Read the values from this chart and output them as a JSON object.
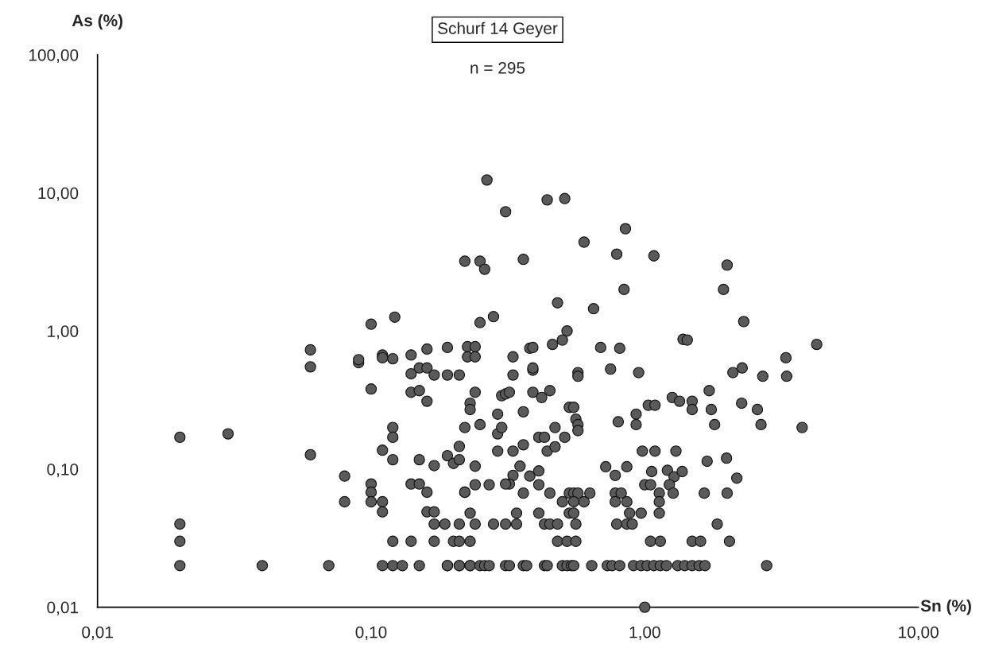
{
  "chart_data": {
    "type": "scatter",
    "title": "Schurf 14 Geyer",
    "subtitle": "n = 295",
    "xlabel": "Sn (%)",
    "ylabel": "As (%)",
    "log": "xy",
    "grid": false,
    "marker": "circle",
    "xlim": [
      0.01,
      10
    ],
    "ylim": [
      0.01,
      100
    ],
    "xticks": [
      {
        "value": 0.01,
        "label": "0,01"
      },
      {
        "value": 0.1,
        "label": "0,10"
      },
      {
        "value": 1,
        "label": "1,00"
      },
      {
        "value": 10,
        "label": "10,00"
      }
    ],
    "yticks": [
      {
        "value": 0.01,
        "label": "0,01"
      },
      {
        "value": 0.1,
        "label": "0,10"
      },
      {
        "value": 1,
        "label": "1,00"
      },
      {
        "value": 10,
        "label": "10,00"
      },
      {
        "value": 100,
        "label": "100,00"
      }
    ],
    "series": [
      {
        "color": "#5a5a5a",
        "x": [
          0.02,
          0.03,
          0.02,
          0.02,
          0.02,
          0.04,
          0.07,
          0.06,
          0.06,
          0.06,
          0.09,
          0.09,
          0.08,
          0.08,
          0.1,
          0.122,
          0.1,
          0.1,
          0.1,
          0.1,
          0.11,
          0.11,
          0.11,
          0.12,
          0.12,
          0.12,
          0.11,
          0.11,
          0.12,
          0.14,
          0.16,
          0.19,
          0.14,
          0.15,
          0.16,
          0.17,
          0.19,
          0.21,
          0.14,
          0.15,
          0.16,
          0.15,
          0.17,
          0.14,
          0.15,
          0.16,
          0.16,
          0.17,
          0.17,
          0.186,
          0.21,
          0.12,
          0.14,
          0.17,
          0.2,
          0.21,
          0.11,
          0.12,
          0.13,
          0.15,
          0.19,
          0.21,
          0.23,
          0.19,
          0.2,
          0.21,
          0.21,
          0.22,
          0.22,
          0.22,
          0.265,
          0.31,
          0.44,
          0.51,
          0.85,
          0.6,
          0.79,
          1.08,
          0.25,
          0.26,
          0.36,
          2.0,
          1.94,
          0.84,
          0.48,
          0.65,
          0.25,
          0.28,
          2.3,
          0.52,
          0.5,
          0.46,
          0.225,
          0.24,
          0.225,
          0.24,
          0.33,
          0.38,
          0.39,
          0.69,
          0.81,
          1.38,
          1.43,
          3.28,
          3.3,
          4.25,
          2.7,
          2.27,
          2.1,
          0.33,
          0.39,
          0.39,
          0.57,
          0.57,
          0.75,
          0.95,
          0.24,
          0.3,
          0.31,
          0.32,
          0.39,
          0.42,
          0.45,
          0.23,
          0.23,
          0.29,
          0.36,
          0.53,
          0.55,
          0.25,
          0.29,
          0.3,
          0.41,
          0.43,
          0.47,
          0.51,
          0.56,
          0.57,
          0.57,
          0.8,
          0.93,
          0.93,
          1.03,
          1.09,
          1.26,
          1.34,
          1.49,
          1.49,
          1.72,
          1.75,
          1.8,
          2.26,
          2.58,
          2.66,
          3.76,
          0.29,
          0.33,
          0.36,
          0.44,
          0.47,
          0.24,
          0.35,
          0.33,
          0.38,
          0.41,
          0.32,
          0.31,
          0.27,
          0.24,
          0.22,
          0.36,
          0.41,
          0.45,
          0.5,
          0.53,
          0.55,
          0.57,
          0.6,
          0.63,
          0.55,
          0.72,
          0.78,
          0.86,
          0.78,
          0.78,
          0.82,
          0.86,
          0.98,
          1.09,
          1.3,
          1.06,
          1.21,
          1.28,
          1.37,
          1.0,
          1.05,
          1.13,
          1.13,
          1.23,
          1.27,
          1.69,
          1.99,
          2.17,
          1.65,
          2.0,
          0.23,
          0.34,
          0.41,
          0.53,
          0.55,
          0.88,
          0.97,
          1.13,
          0.24,
          0.28,
          0.31,
          0.34,
          0.43,
          0.45,
          0.48,
          0.56,
          0.79,
          0.86,
          0.9,
          1.84,
          0.23,
          0.48,
          0.52,
          0.56,
          1.05,
          1.14,
          1.49,
          1.6,
          2.04,
          0.19,
          0.21,
          0.23,
          0.25,
          0.26,
          0.27,
          0.31,
          0.32,
          0.36,
          0.37,
          0.43,
          0.44,
          0.5,
          0.52,
          0.54,
          0.55,
          0.64,
          0.73,
          0.76,
          0.81,
          0.91,
          0.97,
          1.02,
          1.08,
          1.14,
          1.2,
          1.32,
          1.4,
          1.49,
          1.58,
          1.66,
          2.79,
          1.0
        ],
        "values": [
          0.17,
          0.18,
          0.04,
          0.03,
          0.02,
          0.02,
          0.02,
          0.73,
          0.55,
          0.127,
          0.59,
          0.62,
          0.089,
          0.058,
          1.12,
          1.26,
          0.38,
          0.078,
          0.068,
          0.058,
          0.058,
          0.049,
          0.137,
          0.2,
          0.17,
          0.117,
          0.67,
          0.64,
          0.63,
          0.67,
          0.74,
          0.76,
          0.49,
          0.54,
          0.54,
          0.48,
          0.48,
          0.48,
          0.36,
          0.37,
          0.31,
          0.117,
          0.106,
          0.078,
          0.078,
          0.068,
          0.049,
          0.049,
          0.04,
          0.04,
          0.04,
          0.03,
          0.03,
          0.03,
          0.03,
          0.03,
          0.02,
          0.02,
          0.02,
          0.02,
          0.02,
          0.02,
          0.02,
          0.125,
          0.11,
          0.117,
          0.146,
          0.2,
          0.068,
          3.2,
          12.4,
          7.3,
          8.9,
          9.1,
          5.5,
          4.4,
          3.6,
          3.5,
          3.2,
          2.8,
          3.3,
          3.0,
          2.0,
          2.0,
          1.6,
          1.45,
          1.15,
          1.27,
          1.17,
          1.0,
          0.86,
          0.8,
          0.77,
          0.77,
          0.65,
          0.65,
          0.65,
          0.75,
          0.76,
          0.76,
          0.75,
          0.87,
          0.86,
          0.64,
          0.47,
          0.8,
          0.47,
          0.54,
          0.5,
          0.48,
          0.52,
          0.54,
          0.5,
          0.47,
          0.53,
          0.5,
          0.36,
          0.34,
          0.35,
          0.36,
          0.36,
          0.33,
          0.37,
          0.3,
          0.27,
          0.25,
          0.26,
          0.28,
          0.28,
          0.21,
          0.18,
          0.2,
          0.17,
          0.17,
          0.2,
          0.17,
          0.23,
          0.21,
          0.19,
          0.22,
          0.25,
          0.21,
          0.29,
          0.29,
          0.33,
          0.31,
          0.31,
          0.27,
          0.37,
          0.27,
          0.21,
          0.3,
          0.27,
          0.21,
          0.2,
          0.135,
          0.135,
          0.15,
          0.135,
          0.145,
          0.105,
          0.105,
          0.09,
          0.089,
          0.097,
          0.078,
          0.078,
          0.077,
          0.077,
          0.068,
          0.067,
          0.077,
          0.067,
          0.058,
          0.067,
          0.067,
          0.067,
          0.058,
          0.067,
          0.058,
          0.104,
          0.09,
          0.104,
          0.067,
          0.058,
          0.067,
          0.058,
          0.135,
          0.135,
          0.135,
          0.096,
          0.098,
          0.088,
          0.096,
          0.077,
          0.077,
          0.067,
          0.058,
          0.077,
          0.067,
          0.114,
          0.12,
          0.086,
          0.067,
          0.067,
          0.048,
          0.048,
          0.048,
          0.048,
          0.048,
          0.048,
          0.048,
          0.048,
          0.04,
          0.04,
          0.04,
          0.04,
          0.04,
          0.04,
          0.04,
          0.04,
          0.04,
          0.04,
          0.04,
          0.04,
          0.03,
          0.03,
          0.03,
          0.03,
          0.03,
          0.03,
          0.03,
          0.03,
          0.03,
          0.02,
          0.02,
          0.02,
          0.02,
          0.02,
          0.02,
          0.02,
          0.02,
          0.02,
          0.02,
          0.02,
          0.02,
          0.02,
          0.02,
          0.02,
          0.02,
          0.02,
          0.02,
          0.02,
          0.02,
          0.02,
          0.02,
          0.02,
          0.02,
          0.02,
          0.02,
          0.02,
          0.02,
          0.02,
          0.02,
          0.02,
          0.02,
          0.01
        ]
      }
    ]
  }
}
